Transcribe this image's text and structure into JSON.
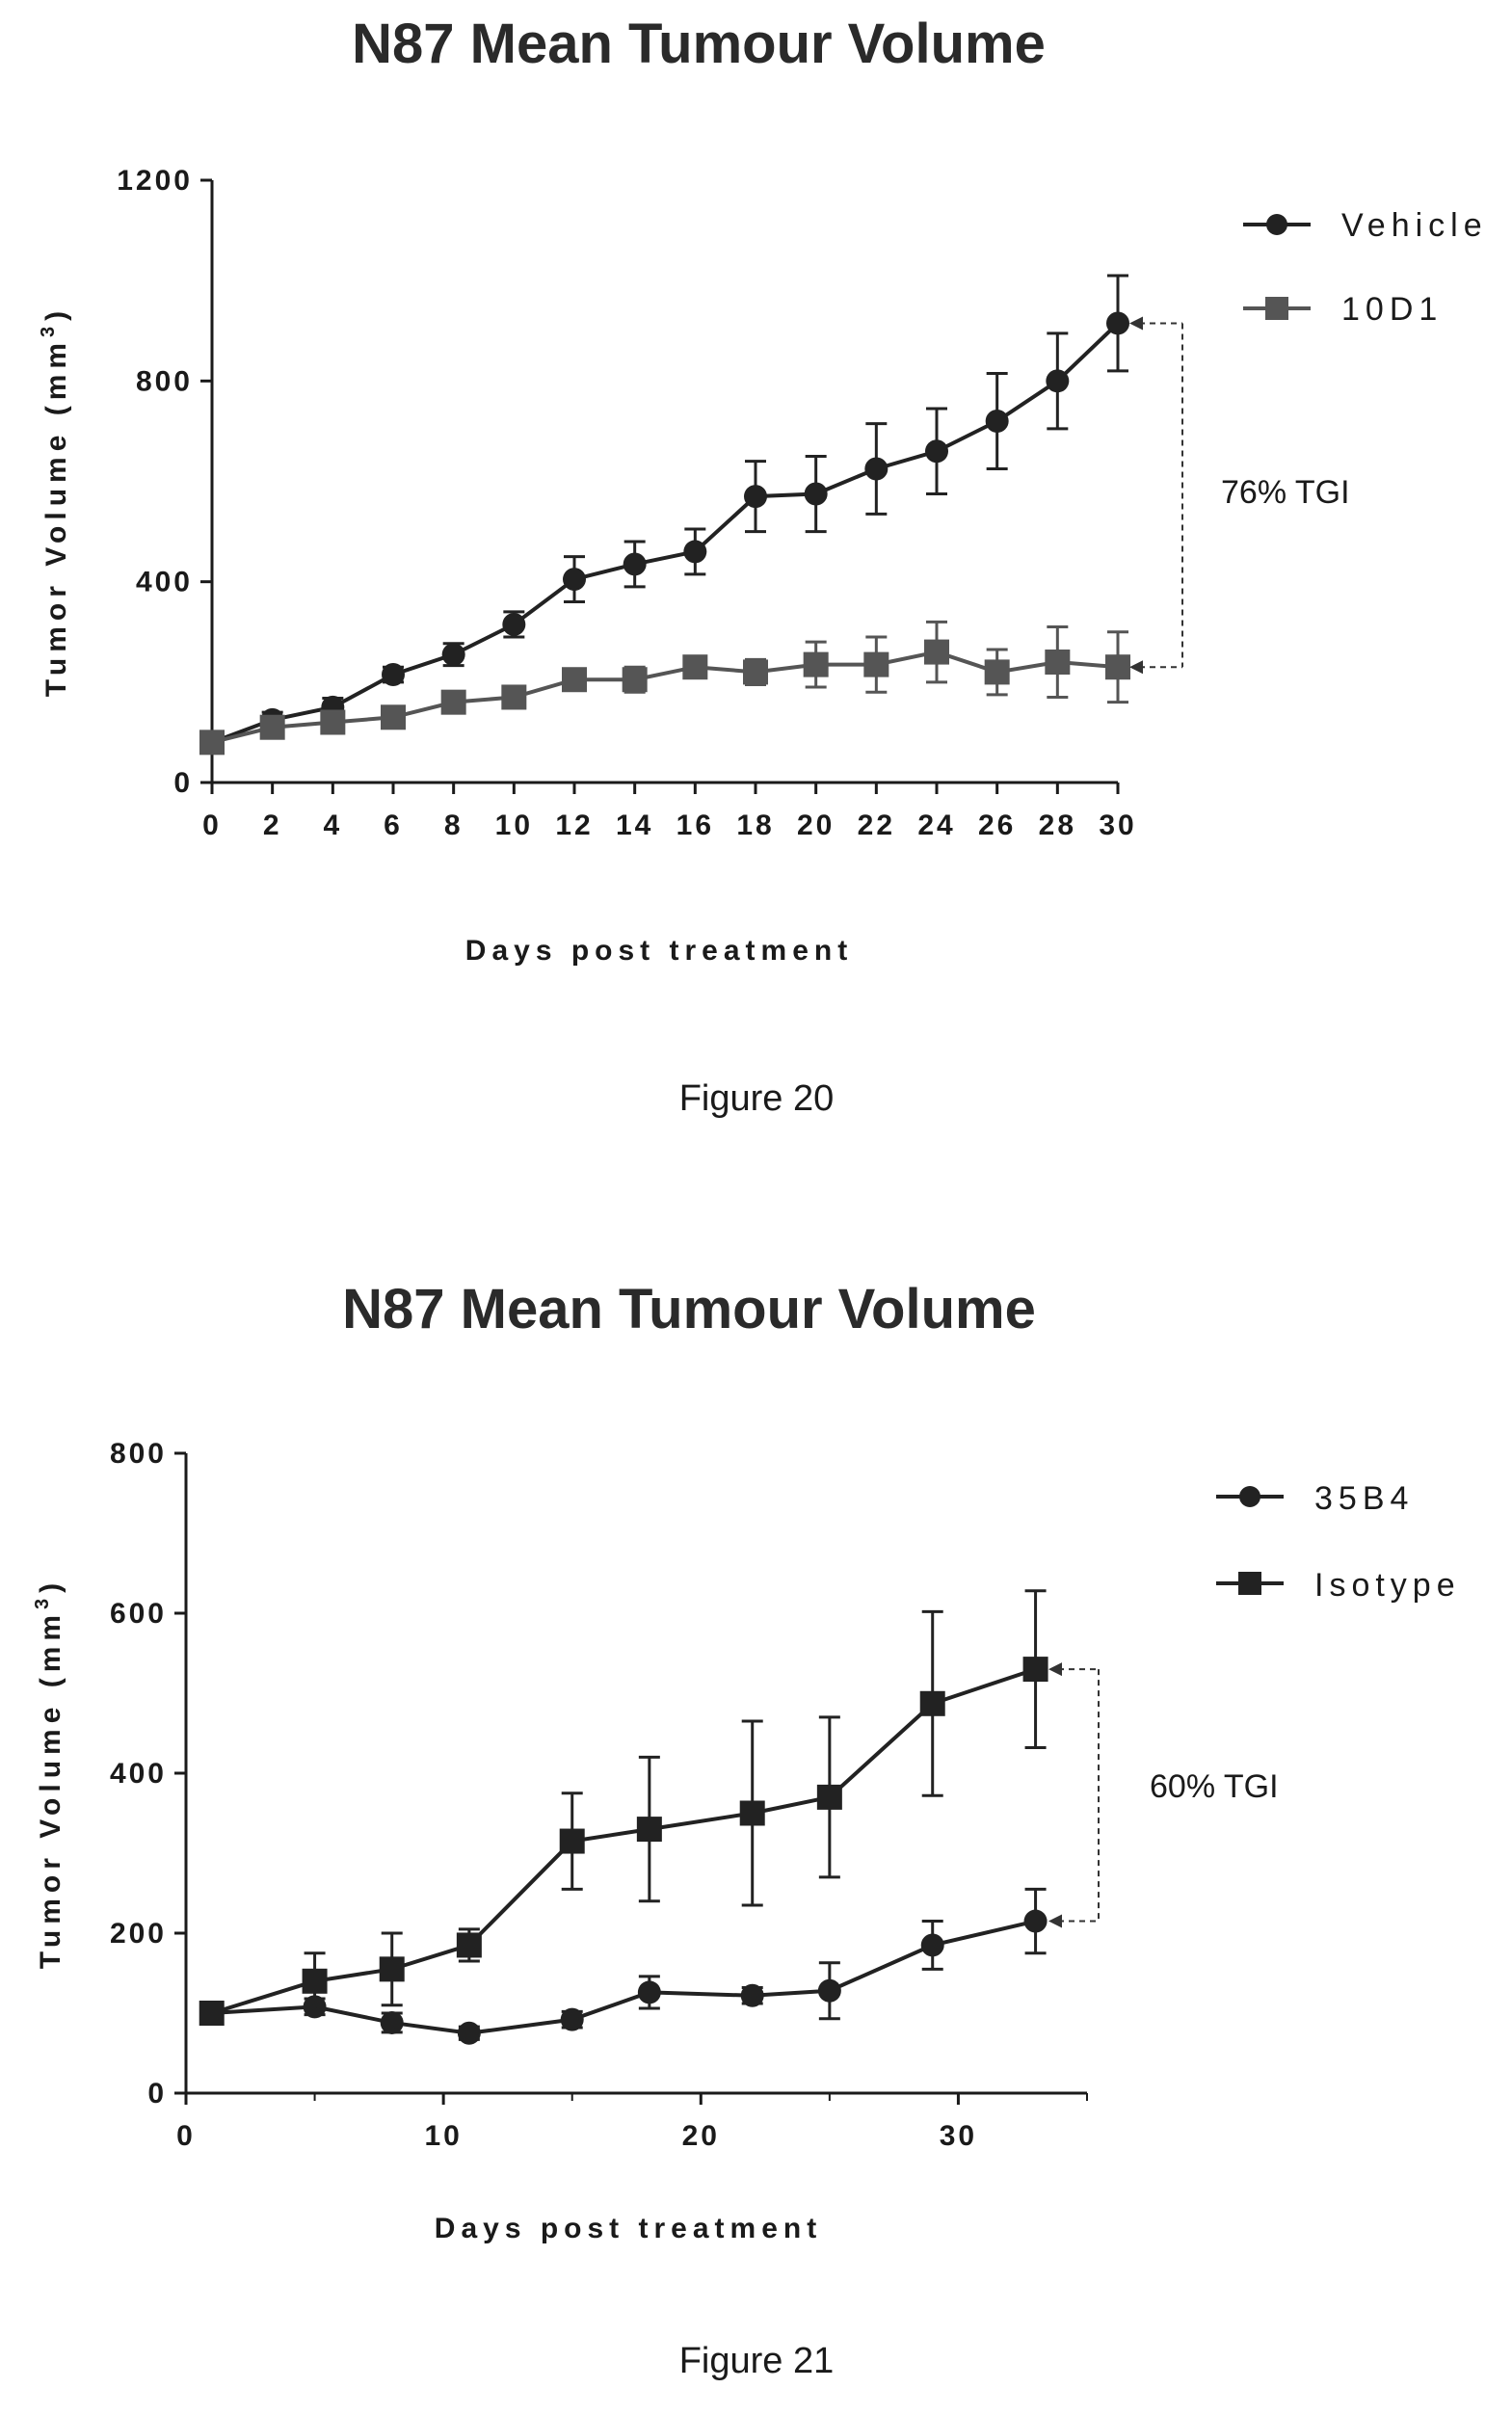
{
  "chart_data": [
    {
      "type": "line",
      "title": "N87 Mean Tumour Volume",
      "xlabel": "Days post treatment",
      "ylabel": "Tumor Volume (mm",
      "ylabel_sup": "3",
      "ylabel_close": ")",
      "xlim": [
        0,
        30
      ],
      "ylim": [
        0,
        1200
      ],
      "xticks": [
        0,
        2,
        4,
        6,
        8,
        10,
        12,
        14,
        16,
        18,
        20,
        22,
        24,
        26,
        28,
        30
      ],
      "yticks": [
        0,
        400,
        800,
        1200
      ],
      "grid": false,
      "legend_position": "top-right",
      "series": [
        {
          "name": "Vehicle",
          "marker": "circle",
          "x": [
            0,
            2,
            4,
            6,
            8,
            10,
            12,
            14,
            16,
            18,
            20,
            22,
            24,
            26,
            28,
            30
          ],
          "y": [
            80,
            125,
            150,
            215,
            255,
            315,
            405,
            435,
            460,
            570,
            575,
            625,
            660,
            720,
            800,
            915
          ],
          "err": [
            20,
            15,
            18,
            15,
            22,
            25,
            45,
            45,
            45,
            70,
            75,
            90,
            85,
            95,
            95,
            95
          ]
        },
        {
          "name": "10D1",
          "marker": "square",
          "x": [
            0,
            2,
            4,
            6,
            8,
            10,
            12,
            14,
            16,
            18,
            20,
            22,
            24,
            26,
            28,
            30
          ],
          "y": [
            80,
            110,
            120,
            130,
            160,
            170,
            205,
            205,
            230,
            220,
            235,
            235,
            260,
            220,
            240,
            230
          ],
          "err": [
            15,
            12,
            12,
            12,
            15,
            15,
            20,
            25,
            20,
            25,
            45,
            55,
            60,
            45,
            70,
            70
          ]
        }
      ],
      "annotation": {
        "text": "76% TGI",
        "from_series": "Vehicle",
        "to_series": "10D1",
        "at_x": 30
      },
      "caption": "Figure 20"
    },
    {
      "type": "line",
      "title": "N87 Mean Tumour Volume",
      "xlabel": "Days post treatment",
      "ylabel": "Tumor Volume (mm",
      "ylabel_sup": "3",
      "ylabel_close": ")",
      "xlim": [
        0,
        35
      ],
      "ylim": [
        0,
        800
      ],
      "xticks": [
        0,
        10,
        20,
        30
      ],
      "yticks": [
        0,
        200,
        400,
        600,
        800
      ],
      "grid": false,
      "legend_position": "top-right",
      "series": [
        {
          "name": "35B4",
          "marker": "circle",
          "x": [
            1,
            5,
            8,
            11,
            15,
            18,
            22,
            25,
            29,
            33
          ],
          "y": [
            100,
            108,
            88,
            75,
            92,
            126,
            122,
            128,
            185,
            215
          ],
          "err": [
            10,
            10,
            12,
            8,
            10,
            20,
            10,
            35,
            30,
            40
          ]
        },
        {
          "name": "Isotype",
          "marker": "square",
          "x": [
            1,
            5,
            8,
            11,
            15,
            18,
            22,
            25,
            29,
            33
          ],
          "y": [
            100,
            140,
            155,
            185,
            315,
            330,
            350,
            370,
            487,
            530
          ],
          "err": [
            10,
            35,
            45,
            20,
            60,
            90,
            115,
            100,
            115,
            98
          ]
        }
      ],
      "annotation": {
        "text": "60% TGI",
        "from_series": "Isotype",
        "to_series": "35B4",
        "at_x": 33
      },
      "caption": "Figure 21"
    }
  ]
}
